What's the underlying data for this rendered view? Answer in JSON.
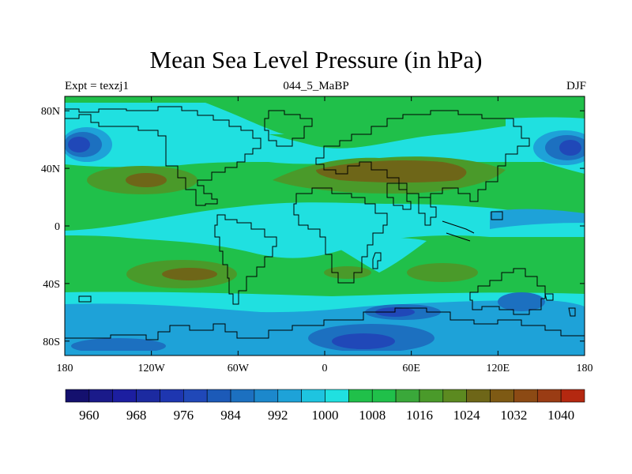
{
  "title": "Mean Sea Level Pressure (in hPa)",
  "subtitle_left": "Expt = texzj1",
  "subtitle_center": "044_5_MaBP",
  "subtitle_right": "DJF",
  "colors": {
    "c960": "#1a1a8a",
    "c968": "#1c2aa0",
    "c976": "#2048b8",
    "c984": "#1c70c0",
    "c992": "#1ea2d8",
    "c1000": "#20e0e0",
    "c1008": "#20c04a",
    "c1016": "#4a9a2a",
    "c1024": "#6e6618",
    "c1032": "#9a3c14",
    "c1040": "#cc1010"
  },
  "chart_data": {
    "type": "heatmap",
    "variable": "Mean Sea Level Pressure",
    "units": "hPa",
    "season": "DJF",
    "xlim": [
      -180,
      180
    ],
    "ylim": [
      -90,
      90
    ],
    "x_ticks": [
      {
        "value": -180,
        "label": "180"
      },
      {
        "value": -120,
        "label": "120W"
      },
      {
        "value": -60,
        "label": "60W"
      },
      {
        "value": 0,
        "label": "0"
      },
      {
        "value": 60,
        "label": "60E"
      },
      {
        "value": 120,
        "label": "120E"
      },
      {
        "value": 180,
        "label": "180"
      }
    ],
    "y_ticks": [
      {
        "value": 80,
        "label": "80N"
      },
      {
        "value": 40,
        "label": "40N"
      },
      {
        "value": 0,
        "label": "0"
      },
      {
        "value": -40,
        "label": "40S"
      },
      {
        "value": -80,
        "label": "80S"
      }
    ],
    "colorbar": {
      "levels": [
        956,
        960,
        964,
        968,
        972,
        976,
        980,
        984,
        988,
        992,
        996,
        1000,
        1004,
        1008,
        1012,
        1016,
        1020,
        1024,
        1028,
        1032,
        1036,
        1040,
        1044
      ],
      "labels": [
        {
          "value": 960,
          "label": "960"
        },
        {
          "value": 968,
          "label": "968"
        },
        {
          "value": 976,
          "label": "976"
        },
        {
          "value": 984,
          "label": "984"
        },
        {
          "value": 992,
          "label": "992"
        },
        {
          "value": 1000,
          "label": "1000"
        },
        {
          "value": 1008,
          "label": "1008"
        },
        {
          "value": 1016,
          "label": "1016"
        },
        {
          "value": 1024,
          "label": "1024"
        },
        {
          "value": 1032,
          "label": "1032"
        },
        {
          "value": 1040,
          "label": "1040"
        }
      ]
    },
    "field": {
      "background": 1006,
      "features": [
        {
          "name": "north-pacific-low",
          "lon": -165,
          "lat": 55,
          "rx": 25,
          "ry": 14,
          "value": 980
        },
        {
          "name": "icelandic-low",
          "lon": 165,
          "lat": 55,
          "rx": 22,
          "ry": 14,
          "value": 980
        },
        {
          "name": "north-cyan-band",
          "lon": -180,
          "lat": 62,
          "rx": 400,
          "ry": 10,
          "value": 998
        },
        {
          "name": "north-atlantic-high",
          "lon": -125,
          "lat": 30,
          "rx": 25,
          "ry": 8,
          "value": 1020
        },
        {
          "name": "asian-high-belt",
          "lon": 70,
          "lat": 35,
          "rx": 60,
          "ry": 12,
          "value": 1018
        },
        {
          "name": "equatorial-pacific",
          "lon": -20,
          "lat": 0,
          "rx": 90,
          "ry": 18,
          "value": 1000
        },
        {
          "name": "south-pacific-high",
          "lon": -130,
          "lat": -35,
          "rx": 30,
          "ry": 8,
          "value": 1018
        },
        {
          "name": "southern-band",
          "lon": 0,
          "lat": -60,
          "rx": 400,
          "ry": 14,
          "value": 995
        },
        {
          "name": "antarctic-low-indian",
          "lon": 50,
          "lat": -75,
          "rx": 30,
          "ry": 9,
          "value": 978
        },
        {
          "name": "antarctic-low-pacific",
          "lon": -150,
          "lat": -85,
          "rx": 40,
          "ry": 6,
          "value": 985
        }
      ]
    }
  }
}
